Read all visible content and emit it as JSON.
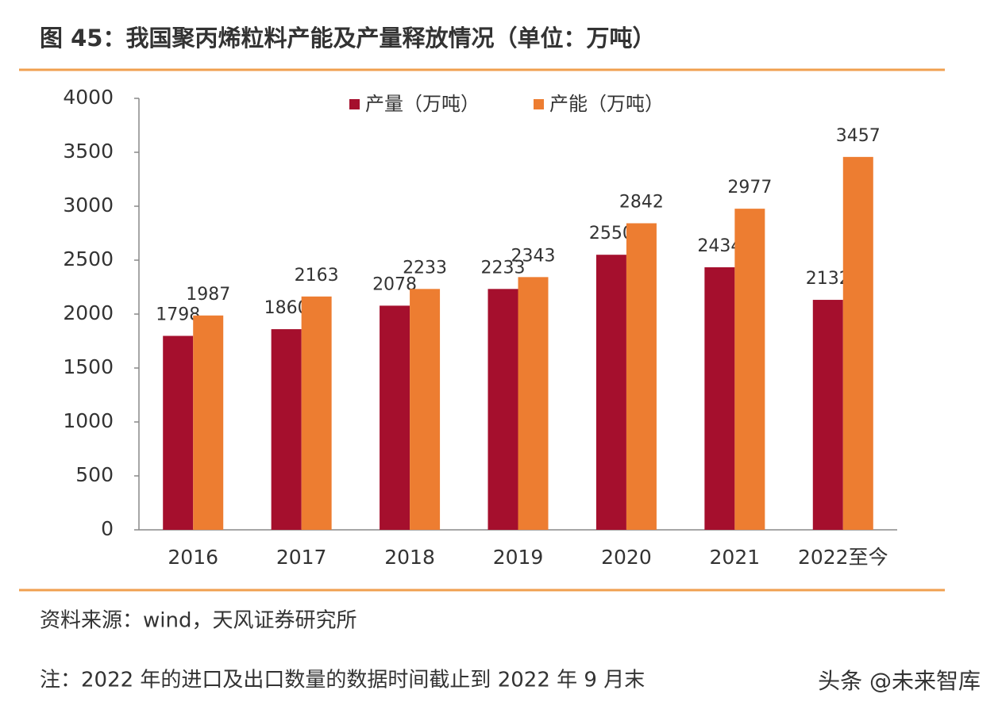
{
  "chart_data": {
    "type": "bar",
    "title": "图 45：我国聚丙烯粒料产能及产量释放情况（单位：万吨）",
    "categories": [
      "2016",
      "2017",
      "2018",
      "2019",
      "2020",
      "2021",
      "2022至今"
    ],
    "series": [
      {
        "name": "产量（万吨）",
        "color": "#a50f2d",
        "values": [
          1798,
          1860,
          2078,
          2233,
          2550,
          2434,
          2132
        ]
      },
      {
        "name": "产能（万吨）",
        "color": "#ed7d31",
        "values": [
          1987,
          2163,
          2233,
          2343,
          2842,
          2977,
          3457
        ]
      }
    ],
    "ylim": [
      0,
      4000
    ],
    "yticks": [
      0,
      500,
      1000,
      1500,
      2000,
      2500,
      3000,
      3500,
      4000
    ],
    "grid": false,
    "legend": "top"
  },
  "source": "资料来源：wind，天风证券研究所",
  "note": "注：2022 年的进口及出口数量的数据时间截止到 2022 年 9 月末",
  "watermark": "头条 @未来智库"
}
